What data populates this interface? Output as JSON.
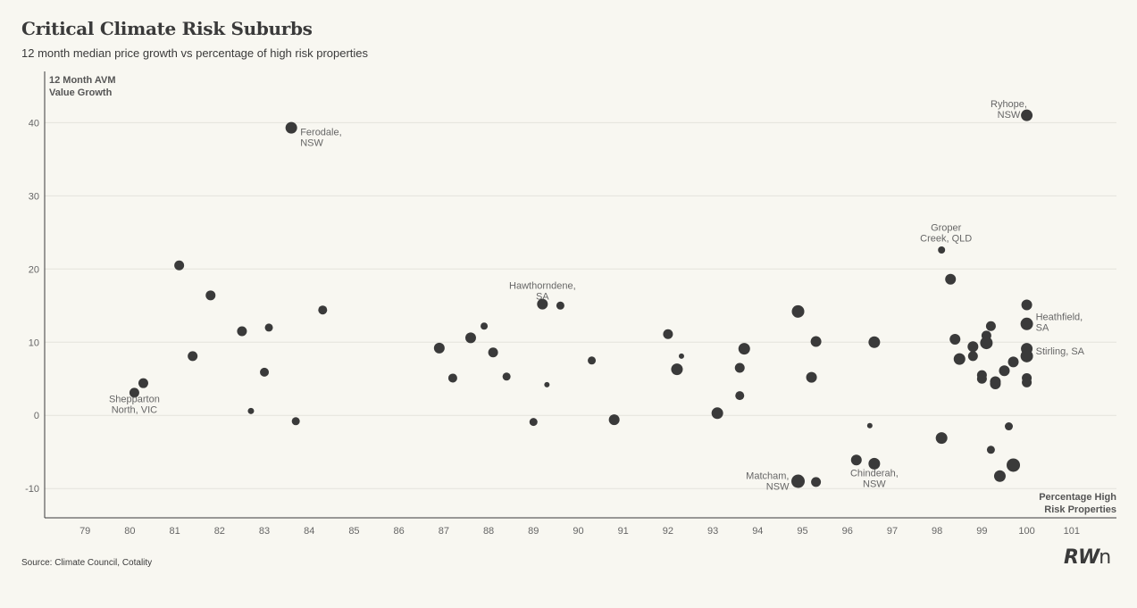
{
  "header": {
    "title": "Critical Climate Risk Suburbs",
    "subtitle": "12 month median price growth vs percentage of high risk properties"
  },
  "footer": {
    "source": "Source: Climate Council, Cotality",
    "logo_text": "RW",
    "logo_suffix": "n"
  },
  "chart_data": {
    "type": "scatter",
    "title": "Critical Climate Risk Suburbs",
    "subtitle": "12 month median price growth vs percentage of high risk properties",
    "ylabel_lines": [
      "12 Month AVM",
      "Value Growth"
    ],
    "xlabel_lines": [
      "Percentage High",
      "Risk Properties"
    ],
    "xlim": [
      78.1,
      102
    ],
    "ylim": [
      -14,
      47
    ],
    "xticks": [
      79,
      80,
      81,
      82,
      83,
      84,
      85,
      86,
      87,
      88,
      89,
      90,
      91,
      92,
      93,
      94,
      95,
      96,
      97,
      98,
      99,
      100,
      101
    ],
    "yticks": [
      -10,
      0,
      10,
      20,
      30,
      40
    ],
    "grid": "horizontal",
    "marker_color": "#3a3a3a",
    "points": [
      {
        "x": 80.1,
        "y": 3.1,
        "s": 5.5
      },
      {
        "x": 80.3,
        "y": 4.4,
        "s": 5.5
      },
      {
        "x": 81.1,
        "y": 20.5,
        "s": 5.5
      },
      {
        "x": 81.4,
        "y": 8.1,
        "s": 5.5
      },
      {
        "x": 81.8,
        "y": 16.4,
        "s": 5.5
      },
      {
        "x": 82.5,
        "y": 11.5,
        "s": 5.5
      },
      {
        "x": 82.7,
        "y": 0.6,
        "s": 3.5
      },
      {
        "x": 83.0,
        "y": 5.9,
        "s": 5
      },
      {
        "x": 83.1,
        "y": 12.0,
        "s": 4.5
      },
      {
        "x": 83.6,
        "y": 39.3,
        "s": 6.5
      },
      {
        "x": 83.7,
        "y": -0.8,
        "s": 4.5
      },
      {
        "x": 84.3,
        "y": 14.4,
        "s": 5
      },
      {
        "x": 86.9,
        "y": 9.2,
        "s": 6
      },
      {
        "x": 87.2,
        "y": 5.1,
        "s": 5
      },
      {
        "x": 87.6,
        "y": 10.6,
        "s": 6
      },
      {
        "x": 87.9,
        "y": 12.2,
        "s": 4
      },
      {
        "x": 88.1,
        "y": 8.6,
        "s": 5.5
      },
      {
        "x": 88.4,
        "y": 5.3,
        "s": 4.5
      },
      {
        "x": 89.0,
        "y": -0.9,
        "s": 4.5
      },
      {
        "x": 89.2,
        "y": 15.2,
        "s": 6
      },
      {
        "x": 89.3,
        "y": 4.2,
        "s": 3
      },
      {
        "x": 89.6,
        "y": 15.0,
        "s": 4.5
      },
      {
        "x": 90.3,
        "y": 7.5,
        "s": 4.5
      },
      {
        "x": 90.8,
        "y": -0.6,
        "s": 6
      },
      {
        "x": 92.0,
        "y": 11.1,
        "s": 5.5
      },
      {
        "x": 92.2,
        "y": 6.3,
        "s": 6.5
      },
      {
        "x": 92.3,
        "y": 8.1,
        "s": 3
      },
      {
        "x": 93.1,
        "y": 0.3,
        "s": 6.5
      },
      {
        "x": 93.6,
        "y": 6.5,
        "s": 5.5
      },
      {
        "x": 93.6,
        "y": 2.7,
        "s": 5
      },
      {
        "x": 93.7,
        "y": 9.1,
        "s": 6.5
      },
      {
        "x": 94.9,
        "y": 14.2,
        "s": 7
      },
      {
        "x": 94.9,
        "y": -9.0,
        "s": 7.5
      },
      {
        "x": 95.2,
        "y": 5.2,
        "s": 6
      },
      {
        "x": 95.3,
        "y": 10.1,
        "s": 6
      },
      {
        "x": 95.3,
        "y": -9.1,
        "s": 5.5
      },
      {
        "x": 96.2,
        "y": -6.1,
        "s": 6
      },
      {
        "x": 96.5,
        "y": -1.4,
        "s": 3
      },
      {
        "x": 96.6,
        "y": 10.0,
        "s": 6.5
      },
      {
        "x": 96.6,
        "y": -6.6,
        "s": 6.5
      },
      {
        "x": 98.1,
        "y": -3.1,
        "s": 6.5
      },
      {
        "x": 98.1,
        "y": 22.6,
        "s": 4
      },
      {
        "x": 98.3,
        "y": 18.6,
        "s": 6
      },
      {
        "x": 98.4,
        "y": 10.4,
        "s": 6
      },
      {
        "x": 98.5,
        "y": 7.7,
        "s": 6.5
      },
      {
        "x": 98.8,
        "y": 8.1,
        "s": 5.5
      },
      {
        "x": 98.8,
        "y": 9.4,
        "s": 6
      },
      {
        "x": 99.0,
        "y": 5.5,
        "s": 5.5
      },
      {
        "x": 99.0,
        "y": 5.0,
        "s": 5.5
      },
      {
        "x": 99.1,
        "y": 10.9,
        "s": 5.5
      },
      {
        "x": 99.1,
        "y": 9.9,
        "s": 7
      },
      {
        "x": 99.2,
        "y": 12.2,
        "s": 5.5
      },
      {
        "x": 99.2,
        "y": -4.7,
        "s": 4.5
      },
      {
        "x": 99.3,
        "y": 4.6,
        "s": 6
      },
      {
        "x": 99.3,
        "y": 4.3,
        "s": 6
      },
      {
        "x": 99.5,
        "y": 6.1,
        "s": 6
      },
      {
        "x": 99.6,
        "y": -1.5,
        "s": 4.5
      },
      {
        "x": 99.7,
        "y": 7.3,
        "s": 6
      },
      {
        "x": 99.4,
        "y": -8.3,
        "s": 6.5
      },
      {
        "x": 99.7,
        "y": -6.8,
        "s": 7.5
      },
      {
        "x": 100.0,
        "y": 41.0,
        "s": 6.5
      },
      {
        "x": 100.0,
        "y": 15.1,
        "s": 6
      },
      {
        "x": 100.0,
        "y": 12.5,
        "s": 7
      },
      {
        "x": 100.0,
        "y": 9.1,
        "s": 6.5
      },
      {
        "x": 100.0,
        "y": 8.1,
        "s": 7
      },
      {
        "x": 100.0,
        "y": 5.1,
        "s": 5.5
      },
      {
        "x": 100.0,
        "y": 4.5,
        "s": 5.5
      }
    ],
    "annotations": [
      {
        "x": 83.7,
        "y": 39.3,
        "lines": [
          "Ferodale,",
          "NSW"
        ],
        "anchor": "start",
        "dx": 0.1,
        "dy": -1.0
      },
      {
        "x": 80.0,
        "y": 1.8,
        "lines": [
          "Shepparton",
          "North, VIC"
        ],
        "anchor": "middle",
        "dx": 0.1,
        "dy": 0.0
      },
      {
        "x": 89.2,
        "y": 17.3,
        "lines": [
          "Hawthorndene,",
          "SA"
        ],
        "anchor": "middle",
        "dx": 0.0,
        "dy": 0.0
      },
      {
        "x": 98.2,
        "y": 25.2,
        "lines": [
          "Groper",
          "Creek, QLD"
        ],
        "anchor": "middle",
        "dx": 0.0,
        "dy": 0.0
      },
      {
        "x": 99.5,
        "y": 42.1,
        "lines": [
          "Ryhope,",
          "NSW"
        ],
        "anchor": "middle",
        "dx": 0.1,
        "dy": 0.0
      },
      {
        "x": 100.2,
        "y": 13.0,
        "lines": [
          "Heathfield,",
          "SA"
        ],
        "anchor": "start",
        "dx": 0.0,
        "dy": 0.0
      },
      {
        "x": 100.2,
        "y": 8.3,
        "lines": [
          "Stirling, SA"
        ],
        "anchor": "start",
        "dx": 0.0,
        "dy": 0.0
      },
      {
        "x": 94.7,
        "y": -8.7,
        "lines": [
          "Matcham,",
          "NSW"
        ],
        "anchor": "end",
        "dx": 0.0,
        "dy": 0.0
      },
      {
        "x": 96.6,
        "y": -8.3,
        "lines": [
          "Chinderah,",
          "NSW"
        ],
        "anchor": "middle",
        "dx": 0.0,
        "dy": 0.0
      }
    ]
  }
}
